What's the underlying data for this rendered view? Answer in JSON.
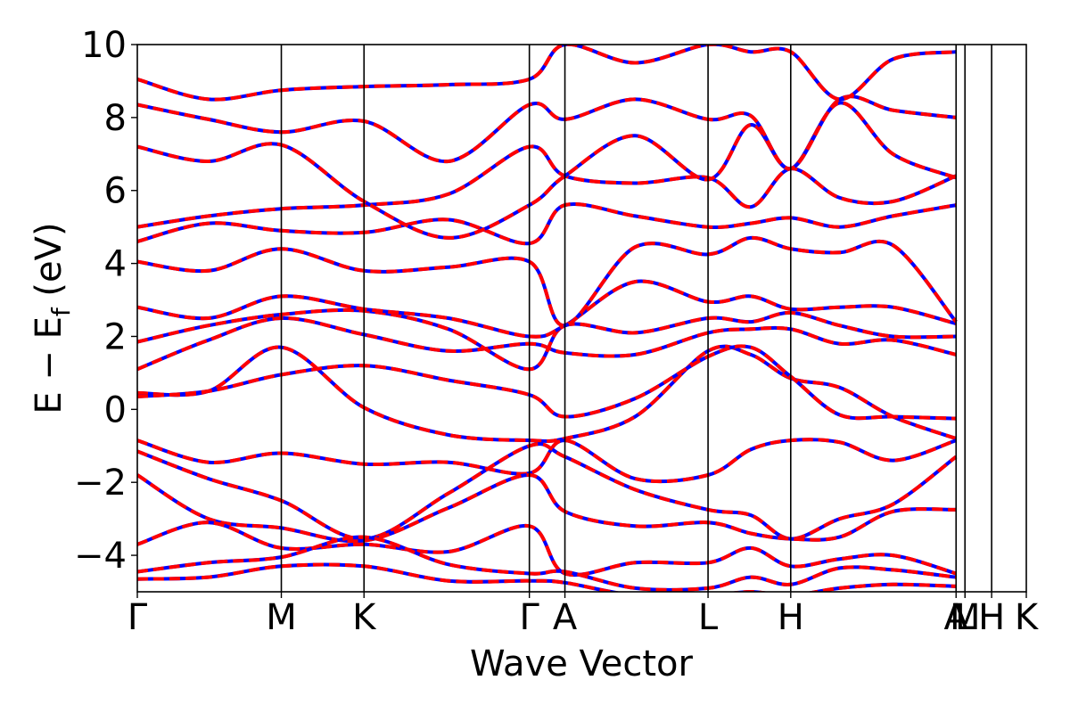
{
  "chart_data": {
    "type": "line",
    "title": "",
    "xlabel": "Wave Vector",
    "ylabel_main": "E − E",
    "ylabel_sub": "f",
    "ylabel_unit": " (eV)",
    "ylim": [
      -5,
      10
    ],
    "yticks": [
      -4,
      -2,
      0,
      2,
      4,
      6,
      8,
      10
    ],
    "ytick_labels": [
      "−4",
      "−2",
      "0",
      "2",
      "4",
      "6",
      "8",
      "10"
    ],
    "xlim": [
      0,
      1
    ],
    "kpoints": [
      {
        "label": "Γ",
        "x": 0.0
      },
      {
        "label": "M",
        "x": 0.162
      },
      {
        "label": "K",
        "x": 0.255
      },
      {
        "label": "Γ",
        "x": 0.441
      },
      {
        "label": "A",
        "x": 0.481
      },
      {
        "label": "L",
        "x": 0.642
      },
      {
        "label": "H",
        "x": 0.735
      },
      {
        "label": "A",
        "x": 0.921
      },
      {
        "label": "L",
        "x": 0.931
      },
      {
        "label": "M",
        "x": 0.931
      },
      {
        "label": "H",
        "x": 0.961
      },
      {
        "label": "K",
        "x": 1.0
      }
    ],
    "series_styles": [
      {
        "name": "",
        "color": "#ff0000",
        "style": "solid"
      },
      {
        "name": "",
        "color": "#0000ff",
        "style": "dashed"
      }
    ],
    "bands": [
      [
        [
          0,
          0.45
        ],
        [
          0.08,
          0.5
        ],
        [
          0.162,
          1.7
        ],
        [
          0.255,
          0.05
        ],
        [
          0.35,
          -0.7
        ],
        [
          0.441,
          -0.85
        ],
        [
          0.481,
          -0.8
        ],
        [
          0.56,
          -0.2
        ],
        [
          0.642,
          1.6
        ],
        [
          0.69,
          1.5
        ],
        [
          0.735,
          0.85
        ],
        [
          0.79,
          0.6
        ],
        [
          0.85,
          -0.2
        ],
        [
          0.921,
          -0.8
        ]
      ],
      [
        [
          0,
          0.35
        ],
        [
          0.08,
          0.5
        ],
        [
          0.162,
          0.95
        ],
        [
          0.255,
          1.2
        ],
        [
          0.35,
          0.8
        ],
        [
          0.441,
          0.4
        ],
        [
          0.481,
          -0.2
        ],
        [
          0.56,
          0.3
        ],
        [
          0.642,
          1.45
        ],
        [
          0.69,
          1.7
        ],
        [
          0.735,
          0.9
        ],
        [
          0.79,
          -0.15
        ],
        [
          0.85,
          -0.2
        ],
        [
          0.921,
          -0.25
        ]
      ],
      [
        [
          0,
          1.1
        ],
        [
          0.08,
          1.9
        ],
        [
          0.162,
          2.5
        ],
        [
          0.255,
          2.05
        ],
        [
          0.35,
          1.6
        ],
        [
          0.441,
          1.8
        ],
        [
          0.481,
          1.55
        ],
        [
          0.56,
          1.5
        ],
        [
          0.642,
          2.1
        ],
        [
          0.69,
          2.2
        ],
        [
          0.735,
          2.2
        ],
        [
          0.79,
          1.8
        ],
        [
          0.85,
          1.9
        ],
        [
          0.921,
          1.5
        ]
      ],
      [
        [
          0,
          1.85
        ],
        [
          0.08,
          2.3
        ],
        [
          0.162,
          2.6
        ],
        [
          0.255,
          2.7
        ],
        [
          0.35,
          2.2
        ],
        [
          0.441,
          1.1
        ],
        [
          0.481,
          2.3
        ],
        [
          0.56,
          2.1
        ],
        [
          0.642,
          2.5
        ],
        [
          0.69,
          2.4
        ],
        [
          0.735,
          2.65
        ],
        [
          0.79,
          2.3
        ],
        [
          0.85,
          2.0
        ],
        [
          0.921,
          2.0
        ]
      ],
      [
        [
          0,
          2.8
        ],
        [
          0.08,
          2.5
        ],
        [
          0.162,
          3.1
        ],
        [
          0.255,
          2.75
        ],
        [
          0.35,
          2.5
        ],
        [
          0.441,
          2.0
        ],
        [
          0.481,
          2.3
        ],
        [
          0.56,
          3.5
        ],
        [
          0.642,
          2.95
        ],
        [
          0.69,
          3.1
        ],
        [
          0.735,
          2.75
        ],
        [
          0.79,
          2.8
        ],
        [
          0.85,
          2.8
        ],
        [
          0.921,
          2.35
        ]
      ],
      [
        [
          0,
          4.05
        ],
        [
          0.08,
          3.8
        ],
        [
          0.162,
          4.4
        ],
        [
          0.255,
          3.8
        ],
        [
          0.35,
          3.9
        ],
        [
          0.441,
          4.05
        ],
        [
          0.481,
          2.3
        ],
        [
          0.56,
          4.45
        ],
        [
          0.642,
          4.25
        ],
        [
          0.69,
          4.7
        ],
        [
          0.735,
          4.4
        ],
        [
          0.79,
          4.3
        ],
        [
          0.85,
          4.5
        ],
        [
          0.921,
          2.4
        ]
      ],
      [
        [
          0,
          4.6
        ],
        [
          0.08,
          5.1
        ],
        [
          0.162,
          4.9
        ],
        [
          0.255,
          4.85
        ],
        [
          0.35,
          5.2
        ],
        [
          0.441,
          4.55
        ],
        [
          0.481,
          5.6
        ],
        [
          0.56,
          5.3
        ],
        [
          0.642,
          5.0
        ],
        [
          0.69,
          5.1
        ],
        [
          0.735,
          5.25
        ],
        [
          0.79,
          5.0
        ],
        [
          0.85,
          5.3
        ],
        [
          0.921,
          5.6
        ]
      ],
      [
        [
          0,
          5.0
        ],
        [
          0.08,
          5.3
        ],
        [
          0.162,
          5.5
        ],
        [
          0.255,
          5.6
        ],
        [
          0.35,
          5.9
        ],
        [
          0.441,
          7.2
        ],
        [
          0.481,
          6.4
        ],
        [
          0.56,
          6.2
        ],
        [
          0.642,
          6.35
        ],
        [
          0.69,
          5.55
        ],
        [
          0.735,
          6.6
        ],
        [
          0.79,
          5.8
        ],
        [
          0.85,
          5.7
        ],
        [
          0.921,
          6.4
        ]
      ],
      [
        [
          0,
          7.2
        ],
        [
          0.08,
          6.8
        ],
        [
          0.162,
          7.25
        ],
        [
          0.255,
          5.7
        ],
        [
          0.35,
          4.7
        ],
        [
          0.441,
          5.6
        ],
        [
          0.481,
          6.4
        ],
        [
          0.56,
          7.5
        ],
        [
          0.642,
          6.3
        ],
        [
          0.69,
          7.8
        ],
        [
          0.735,
          6.6
        ],
        [
          0.79,
          8.4
        ],
        [
          0.85,
          7.0
        ],
        [
          0.921,
          6.35
        ]
      ],
      [
        [
          0,
          8.35
        ],
        [
          0.08,
          7.95
        ],
        [
          0.162,
          7.6
        ],
        [
          0.255,
          7.9
        ],
        [
          0.35,
          6.8
        ],
        [
          0.441,
          8.35
        ],
        [
          0.481,
          7.95
        ],
        [
          0.56,
          8.5
        ],
        [
          0.642,
          7.95
        ],
        [
          0.69,
          8.05
        ],
        [
          0.735,
          6.6
        ],
        [
          0.79,
          8.5
        ],
        [
          0.85,
          8.2
        ],
        [
          0.921,
          8.0
        ]
      ],
      [
        [
          0,
          9.05
        ],
        [
          0.08,
          8.5
        ],
        [
          0.162,
          8.75
        ],
        [
          0.255,
          8.85
        ],
        [
          0.35,
          8.9
        ],
        [
          0.441,
          9.05
        ],
        [
          0.481,
          10.0
        ],
        [
          0.56,
          9.5
        ],
        [
          0.642,
          10.0
        ],
        [
          0.69,
          9.8
        ],
        [
          0.735,
          9.8
        ],
        [
          0.79,
          8.5
        ],
        [
          0.85,
          9.6
        ],
        [
          0.921,
          9.8
        ]
      ],
      [
        [
          0,
          -0.85
        ],
        [
          0.08,
          -1.45
        ],
        [
          0.162,
          -1.2
        ],
        [
          0.255,
          -1.5
        ],
        [
          0.35,
          -1.45
        ],
        [
          0.441,
          -1.75
        ],
        [
          0.481,
          -0.85
        ],
        [
          0.56,
          -1.9
        ],
        [
          0.642,
          -1.8
        ],
        [
          0.69,
          -1.1
        ],
        [
          0.735,
          -0.85
        ],
        [
          0.79,
          -0.9
        ],
        [
          0.85,
          -1.4
        ],
        [
          0.921,
          -0.85
        ]
      ],
      [
        [
          0,
          -1.15
        ],
        [
          0.08,
          -1.9
        ],
        [
          0.162,
          -2.5
        ],
        [
          0.255,
          -3.55
        ],
        [
          0.35,
          -2.3
        ],
        [
          0.441,
          -1.0
        ],
        [
          0.481,
          -1.3
        ],
        [
          0.56,
          -2.2
        ],
        [
          0.642,
          -2.75
        ],
        [
          0.69,
          -2.9
        ],
        [
          0.735,
          -3.55
        ],
        [
          0.79,
          -3.0
        ],
        [
          0.85,
          -2.6
        ],
        [
          0.921,
          -1.3
        ]
      ],
      [
        [
          0,
          -1.8
        ],
        [
          0.08,
          -3.0
        ],
        [
          0.162,
          -3.25
        ],
        [
          0.255,
          -3.6
        ],
        [
          0.35,
          -2.7
        ],
        [
          0.441,
          -1.8
        ],
        [
          0.481,
          -2.8
        ],
        [
          0.56,
          -3.2
        ],
        [
          0.642,
          -3.1
        ],
        [
          0.69,
          -3.4
        ],
        [
          0.735,
          -3.55
        ],
        [
          0.79,
          -3.5
        ],
        [
          0.85,
          -2.8
        ],
        [
          0.921,
          -2.75
        ]
      ],
      [
        [
          0,
          -3.7
        ],
        [
          0.08,
          -3.1
        ],
        [
          0.162,
          -3.8
        ],
        [
          0.255,
          -3.7
        ],
        [
          0.35,
          -3.9
        ],
        [
          0.441,
          -3.2
        ],
        [
          0.481,
          -4.5
        ],
        [
          0.56,
          -4.2
        ],
        [
          0.642,
          -4.2
        ],
        [
          0.69,
          -3.8
        ],
        [
          0.735,
          -4.3
        ],
        [
          0.79,
          -4.1
        ],
        [
          0.85,
          -4.0
        ],
        [
          0.921,
          -4.5
        ]
      ],
      [
        [
          0,
          -4.45
        ],
        [
          0.08,
          -4.2
        ],
        [
          0.162,
          -4.05
        ],
        [
          0.255,
          -3.5
        ],
        [
          0.35,
          -4.25
        ],
        [
          0.441,
          -4.5
        ],
        [
          0.481,
          -4.45
        ],
        [
          0.56,
          -4.9
        ],
        [
          0.642,
          -4.9
        ],
        [
          0.69,
          -4.6
        ],
        [
          0.735,
          -4.8
        ],
        [
          0.79,
          -4.35
        ],
        [
          0.85,
          -4.4
        ],
        [
          0.921,
          -4.6
        ]
      ],
      [
        [
          0,
          -4.65
        ],
        [
          0.08,
          -4.6
        ],
        [
          0.162,
          -4.3
        ],
        [
          0.255,
          -4.3
        ],
        [
          0.35,
          -4.7
        ],
        [
          0.441,
          -4.7
        ],
        [
          0.481,
          -4.75
        ],
        [
          0.56,
          -5.1
        ],
        [
          0.642,
          -5.1
        ],
        [
          0.69,
          -5.0
        ],
        [
          0.735,
          -5.1
        ],
        [
          0.79,
          -4.9
        ],
        [
          0.85,
          -4.8
        ],
        [
          0.921,
          -4.85
        ]
      ]
    ]
  }
}
